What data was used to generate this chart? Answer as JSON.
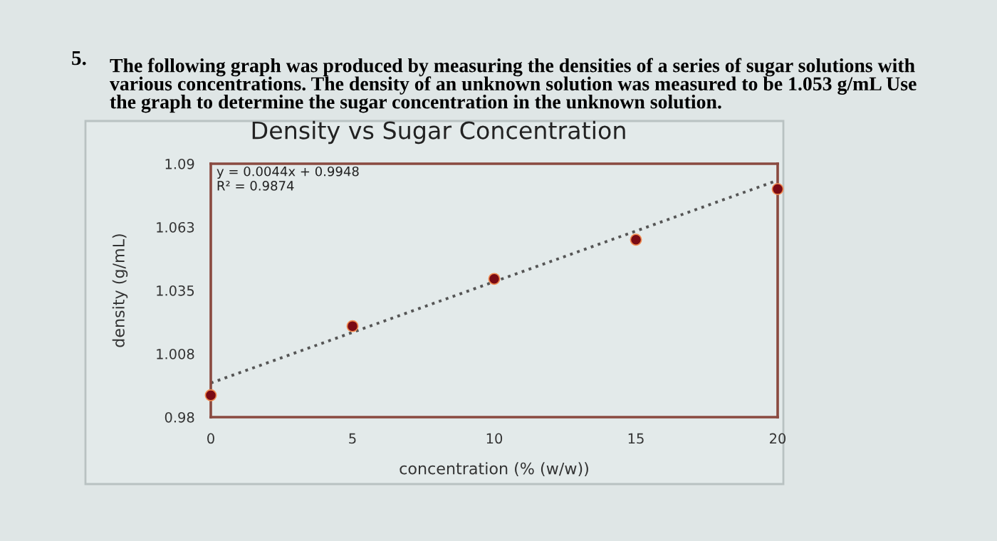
{
  "chart_data": {
    "type": "scatter",
    "title": "Density vs Sugar Concentration",
    "xlabel": "concentration (% (w/w))",
    "ylabel": "density (g/mL)",
    "annotations": [
      "5.",
      "The following graph was produced by measuring the densities of a series of sugar solutions with\nvarious concentrations. The density of an unknown solution was measured to be 1.053 g/mL Use\nthe graph to determine the sugar concentration in the unknown solution.",
      "y = 0.0044x + 0.9948\nR² = 0.9874"
    ],
    "series": [
      {
        "color": "#7a0a14",
        "marker": "circle",
        "x": [
          0,
          5,
          10,
          15,
          20
        ],
        "values": [
          0.9895,
          1.0195,
          1.04,
          1.057,
          1.079
        ]
      },
      {
        "type": "line",
        "color": "#555555",
        "line_style": "dotted",
        "marker": "none",
        "x": [
          0,
          20
        ],
        "values": [
          0.9948,
          1.0828
        ]
      }
    ],
    "xlim": [
      0,
      20
    ],
    "ylim": [
      0.98,
      1.09
    ],
    "xticks": [
      0,
      5,
      10,
      15,
      20
    ],
    "yticks": [
      0.98,
      {
        "value": 1.0075,
        "label": "1.008"
      },
      1.035,
      {
        "value": 1.0625,
        "label": "1.063"
      },
      1.09
    ],
    "grid": false,
    "legend": false
  }
}
